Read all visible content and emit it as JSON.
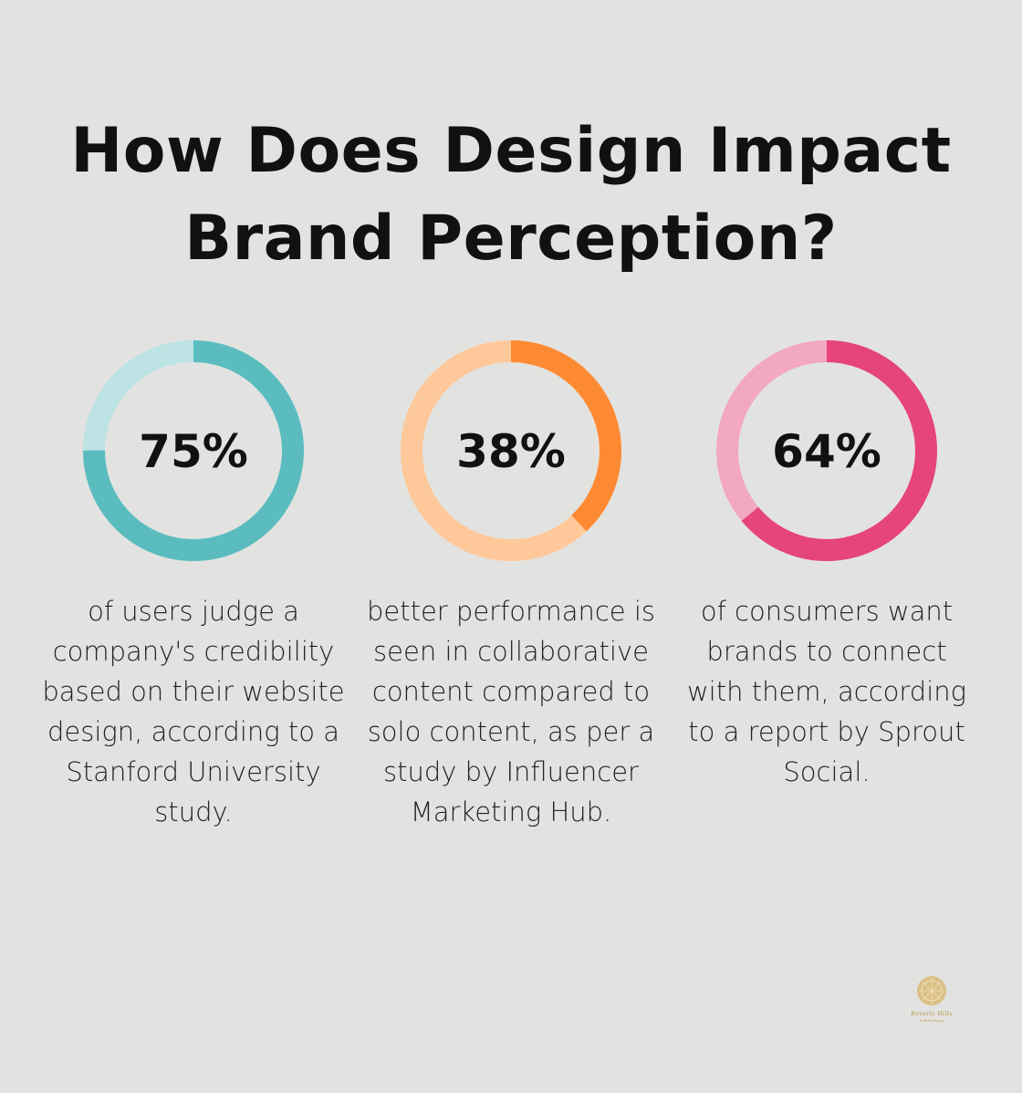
{
  "title": "How Does Design Impact Brand Perception?",
  "chart_data": [
    {
      "type": "pie",
      "variant": "donut",
      "value": 75,
      "label": "75%",
      "colors": {
        "fill": "#5bbcbf",
        "track": "#bde3e4"
      },
      "description": "of users judge a company's credibility based on their website design, according to a Stanford University study."
    },
    {
      "type": "pie",
      "variant": "donut",
      "value": 38,
      "label": "38%",
      "colors": {
        "fill": "#fd8a32",
        "track": "#fec89a"
      },
      "description": "better performance is seen in collaborative content compared to solo content, as per a study by Influencer Marketing Hub."
    },
    {
      "type": "pie",
      "variant": "donut",
      "value": 64,
      "label": "64%",
      "colors": {
        "fill": "#e5457a",
        "track": "#f2a8c0"
      },
      "description": "of consumers want brands to connect with them, according to a report by Sprout Social."
    }
  ],
  "logo": {
    "name": "Beverly Hills",
    "subtitle": "Publishing"
  }
}
